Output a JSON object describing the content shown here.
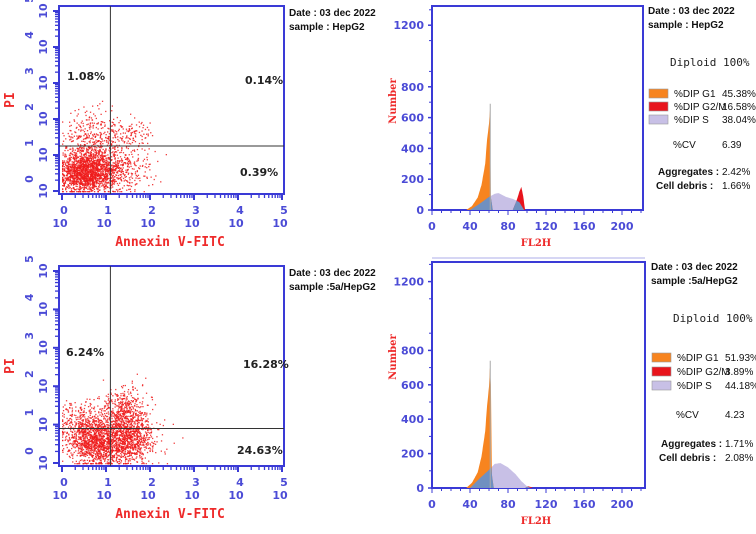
{
  "chart_data": [
    {
      "type": "scatter",
      "panel": "top-left",
      "xlabel": "Annexin V-FITC",
      "ylabel": "PI",
      "xscale": "log",
      "yscale": "log",
      "xticks": [
        "10^0",
        "10^1",
        "10^2",
        "10^3",
        "10^4",
        "10^5"
      ],
      "yticks": [
        "10^0",
        "10^1",
        "10^2",
        "10^3",
        "10^4",
        "10^5"
      ],
      "tick_base": "10",
      "tick_exponents": [
        "0",
        "1",
        "2",
        "3",
        "4",
        "5"
      ],
      "xlim": [
        0,
        5
      ],
      "ylim": [
        0,
        5
      ],
      "gate": {
        "x": 1.1,
        "y": 1.25
      },
      "quadrants": {
        "upper_left": "1.08%",
        "upper_right": "0.14%",
        "lower_right": "0.39%"
      },
      "date": "Date : 03 dec 2022",
      "sample": "sample : HepG2",
      "point_color": "#ee1c1c"
    },
    {
      "type": "area",
      "panel": "top-right",
      "xlabel": "FL2H",
      "ylabel": "Number",
      "xlim": [
        0,
        220
      ],
      "ylim": [
        0,
        1300
      ],
      "xticks": [
        "0",
        "40",
        "80",
        "120",
        "160",
        "200"
      ],
      "yticks": [
        "0",
        "200",
        "400",
        "600",
        "800",
        "1200"
      ],
      "date": "Date : 03 dec 2022",
      "sample": "sample : HepG2",
      "diploid": "Diploid 100%",
      "legend": [
        {
          "name": "%DIP G1",
          "value": "45.38%",
          "color": "#f7841f"
        },
        {
          "name": "%DIP G2/M",
          "value": "16.58%",
          "color": "#e8141c"
        },
        {
          "name": "%DIP S",
          "value": "38.04%",
          "color": "#c8c0e6"
        }
      ],
      "cv_label": "%CV",
      "cv": "6.39",
      "aggregates_label": "Aggregates :",
      "aggregates": "2.42%",
      "debris_label": "Cell debris :",
      "debris": "1.66%",
      "series": {
        "G1": [
          [
            36,
            0
          ],
          [
            42,
            25
          ],
          [
            48,
            80
          ],
          [
            52,
            160
          ],
          [
            56,
            300
          ],
          [
            58,
            460
          ],
          [
            60,
            560
          ],
          [
            61,
            650
          ],
          [
            62,
            80
          ],
          [
            64,
            0
          ]
        ],
        "S": [
          [
            40,
            0
          ],
          [
            50,
            40
          ],
          [
            60,
            85
          ],
          [
            66,
            105
          ],
          [
            70,
            110
          ],
          [
            78,
            85
          ],
          [
            86,
            70
          ],
          [
            92,
            50
          ],
          [
            97,
            0
          ]
        ],
        "G2": [
          [
            85,
            0
          ],
          [
            89,
            60
          ],
          [
            92,
            120
          ],
          [
            94,
            150
          ],
          [
            96,
            90
          ],
          [
            98,
            0
          ]
        ]
      }
    },
    {
      "type": "scatter",
      "panel": "bottom-left",
      "xlabel": "Annexin V-FITC",
      "ylabel": "PI",
      "xscale": "log",
      "yscale": "log",
      "xticks": [
        "10^0",
        "10^1",
        "10^2",
        "10^3",
        "10^4",
        "10^5"
      ],
      "yticks": [
        "10^0",
        "10^1",
        "10^2",
        "10^3",
        "10^4",
        "10^5"
      ],
      "tick_base": "10",
      "tick_exponents": [
        "0",
        "1",
        "2",
        "3",
        "4",
        "5"
      ],
      "xlim": [
        0,
        5
      ],
      "ylim": [
        0,
        5
      ],
      "gate": {
        "x": 1.1,
        "y": 0.9
      },
      "quadrants": {
        "upper_left": "6.24%",
        "upper_right": "16.28%",
        "lower_right": "24.63%"
      },
      "date": "Date : 03 dec 2022",
      "sample": "sample :5a/HepG2",
      "point_color": "#ee1c1c"
    },
    {
      "type": "area",
      "panel": "bottom-right",
      "xlabel": "FL2H",
      "ylabel": "Number",
      "xlim": [
        0,
        220
      ],
      "ylim": [
        0,
        1300
      ],
      "xticks": [
        "0",
        "40",
        "80",
        "120",
        "160",
        "200"
      ],
      "yticks": [
        "0",
        "200",
        "400",
        "600",
        "800",
        "1200"
      ],
      "date": "Date : 03 dec 2022",
      "sample": "sample :5a/HepG2",
      "diploid": "Diploid 100%",
      "legend": [
        {
          "name": "%DIP G1",
          "value": "51.93%",
          "color": "#f7841f"
        },
        {
          "name": "%DIP G2/M",
          "value": "3.89%",
          "color": "#e8141c"
        },
        {
          "name": "%DIP S",
          "value": "44.18%",
          "color": "#c8c0e6"
        }
      ],
      "cv_label": "%CV",
      "cv": "4.23",
      "aggregates_label": "Aggregates :",
      "aggregates": "1.71%",
      "debris_label": "Cell debris :",
      "debris": "2.08%",
      "series": {
        "G1": [
          [
            36,
            0
          ],
          [
            42,
            30
          ],
          [
            48,
            90
          ],
          [
            52,
            180
          ],
          [
            56,
            330
          ],
          [
            58,
            480
          ],
          [
            60,
            590
          ],
          [
            61,
            700
          ],
          [
            62,
            600
          ],
          [
            63,
            80
          ],
          [
            65,
            0
          ]
        ],
        "S": [
          [
            40,
            0
          ],
          [
            50,
            55
          ],
          [
            60,
            105
          ],
          [
            66,
            140
          ],
          [
            72,
            145
          ],
          [
            80,
            120
          ],
          [
            88,
            80
          ],
          [
            94,
            40
          ],
          [
            100,
            10
          ],
          [
            104,
            0
          ]
        ],
        "G2": [
          [
            98,
            0
          ],
          [
            101,
            10
          ],
          [
            104,
            6
          ],
          [
            106,
            0
          ]
        ]
      }
    }
  ],
  "colors": {
    "axis": "#3a3ad6",
    "overlap": "#7090c0",
    "gate": "#333333"
  }
}
